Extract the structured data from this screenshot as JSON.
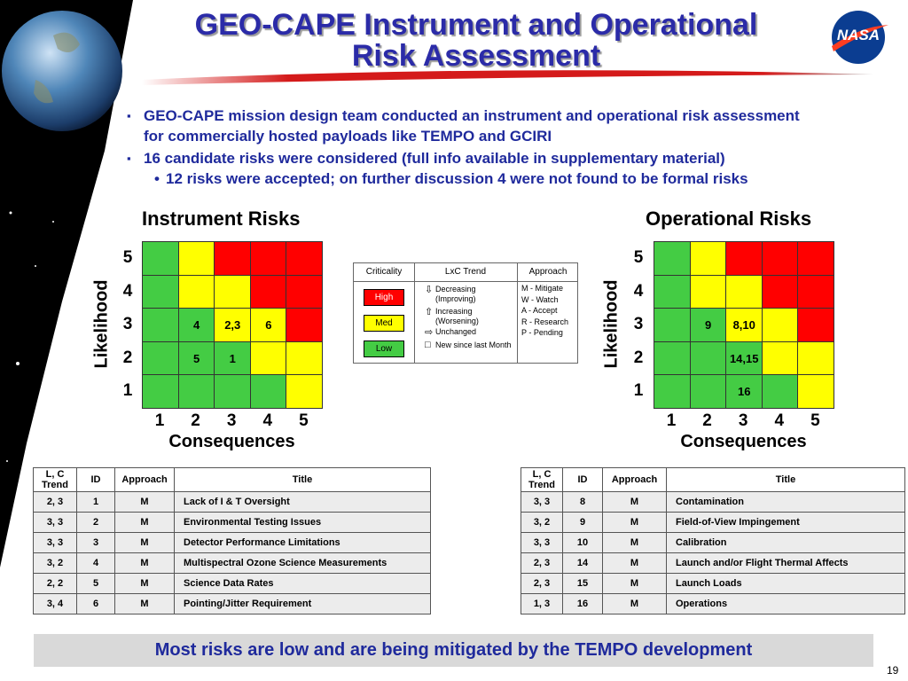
{
  "logo": "NASA",
  "title_lines": [
    "GEO-CAPE Instrument and Operational",
    "Risk Assessment"
  ],
  "bullets": [
    "GEO-CAPE mission design team conducted an instrument and operational risk assessment for commercially hosted payloads like TEMPO and GCIRI",
    "16 candidate risks were considered (full info available in supplementary material)"
  ],
  "sub_bullet": "12 risks were accepted; on further discussion 4 were not found to be formal risks",
  "palette": {
    "G": "#44cc44",
    "Y": "#ffff00",
    "R": "#ff0000"
  },
  "matrices": [
    {
      "title": "Instrument Risks",
      "y_label": "Likelihood",
      "x_label": "Consequences",
      "row_labels": [
        "5",
        "4",
        "3",
        "2",
        "1"
      ],
      "col_labels": [
        "1",
        "2",
        "3",
        "4",
        "5"
      ],
      "colors": [
        [
          "G",
          "Y",
          "R",
          "R",
          "R"
        ],
        [
          "G",
          "Y",
          "Y",
          "R",
          "R"
        ],
        [
          "G",
          "G",
          "Y",
          "Y",
          "R"
        ],
        [
          "G",
          "G",
          "G",
          "Y",
          "Y"
        ],
        [
          "G",
          "G",
          "G",
          "G",
          "Y"
        ]
      ],
      "labels": [
        [
          null,
          null,
          null,
          null,
          null
        ],
        [
          null,
          null,
          null,
          null,
          null
        ],
        [
          null,
          "4",
          "2,3",
          "6",
          null
        ],
        [
          null,
          "5",
          "1",
          null,
          null
        ],
        [
          null,
          null,
          null,
          null,
          null
        ]
      ]
    },
    {
      "title": "Operational Risks",
      "y_label": "Likelihood",
      "x_label": "Consequences",
      "row_labels": [
        "5",
        "4",
        "3",
        "2",
        "1"
      ],
      "col_labels": [
        "1",
        "2",
        "3",
        "4",
        "5"
      ],
      "colors": [
        [
          "G",
          "Y",
          "R",
          "R",
          "R"
        ],
        [
          "G",
          "Y",
          "Y",
          "R",
          "R"
        ],
        [
          "G",
          "G",
          "Y",
          "Y",
          "R"
        ],
        [
          "G",
          "G",
          "G",
          "Y",
          "Y"
        ],
        [
          "G",
          "G",
          "G",
          "G",
          "Y"
        ]
      ],
      "labels": [
        [
          null,
          null,
          null,
          null,
          null
        ],
        [
          null,
          null,
          null,
          null,
          null
        ],
        [
          null,
          "9",
          "8,10",
          null,
          null
        ],
        [
          null,
          null,
          "14,15",
          null,
          null
        ],
        [
          null,
          null,
          "16",
          null,
          null
        ]
      ]
    }
  ],
  "legend": {
    "headers": [
      "Criticality",
      "LxC Trend",
      "Approach"
    ],
    "criticality": [
      {
        "label": "High",
        "color": "#ff0000",
        "text_color": "#ffffff"
      },
      {
        "label": "Med",
        "color": "#ffff00",
        "text_color": "#000000"
      },
      {
        "label": "Low",
        "color": "#44cc44",
        "text_color": "#000000"
      }
    ],
    "trend": [
      "Decreasing (Improving)",
      "Increasing (Worsening)",
      "Unchanged",
      "New since last Month"
    ],
    "approach": [
      "M - Mitigate",
      "W - Watch",
      "A - Accept",
      "R - Research",
      "P - Pending"
    ]
  },
  "tables": [
    {
      "header": [
        "L, C Trend",
        "ID",
        "Approach",
        "Title"
      ],
      "rows": [
        [
          "2, 3",
          "1",
          "M",
          "Lack of I & T Oversight"
        ],
        [
          "3, 3",
          "2",
          "M",
          "Environmental Testing Issues"
        ],
        [
          "3, 3",
          "3",
          "M",
          "Detector Performance Limitations"
        ],
        [
          "3, 2",
          "4",
          "M",
          "Multispectral Ozone Science Measurements"
        ],
        [
          "2, 2",
          "5",
          "M",
          "Science Data Rates"
        ],
        [
          "3, 4",
          "6",
          "M",
          "Pointing/Jitter Requirement"
        ]
      ]
    },
    {
      "header": [
        "L, C Trend",
        "ID",
        "Approach",
        "Title"
      ],
      "rows": [
        [
          "3, 3",
          "8",
          "M",
          "Contamination"
        ],
        [
          "3, 2",
          "9",
          "M",
          "Field-of-View Impingement"
        ],
        [
          "3, 3",
          "10",
          "M",
          "Calibration"
        ],
        [
          "2, 3",
          "14",
          "M",
          "Launch and/or Flight Thermal Affects"
        ],
        [
          "2, 3",
          "15",
          "M",
          "Launch Loads"
        ],
        [
          "1, 3",
          "16",
          "M",
          "Operations"
        ]
      ]
    }
  ],
  "footer": "Most risks are low and are being mitigated by the TEMPO development",
  "page_number": "19"
}
